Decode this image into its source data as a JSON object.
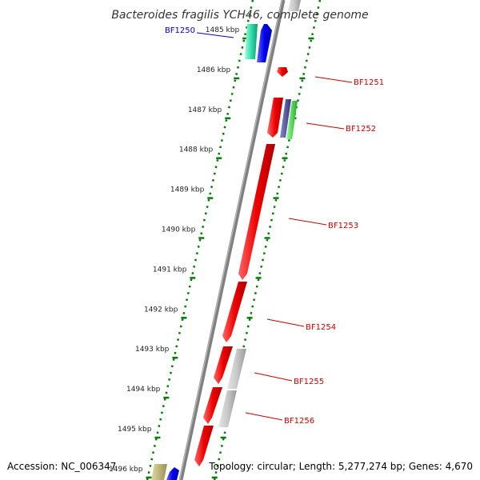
{
  "title": "Bacteroides fragilis YCH46, complete genome",
  "accession_text": "Accession: NC_006347",
  "topology_text": "Topology: circular; Length: 5,277,274 bp; Genes: 4,670",
  "colors": {
    "backbone": "#808080",
    "tick": "#0a7a0a",
    "label_red": "#cc0000",
    "label_blue": "#0000cc"
  },
  "ruler": {
    "labels": [
      "1485 kbp",
      "1486 kbp",
      "1487 kbp",
      "1488 kbp",
      "1489 kbp",
      "1490 kbp",
      "1491 kbp",
      "1492 kbp",
      "1493 kbp",
      "1494 kbp",
      "1495 kbp",
      "1496 kbp"
    ]
  },
  "genes": [
    {
      "name": "BF1250",
      "label_color": "#0000cc",
      "genes_color": [
        "#33ddaa",
        "#0000ee"
      ]
    },
    {
      "name": "BF1251",
      "label_color": "#cc0000"
    },
    {
      "name": "BF1252",
      "label_color": "#cc0000"
    },
    {
      "name": "BF1253",
      "label_color": "#cc0000"
    },
    {
      "name": "BF1254",
      "label_color": "#cc0000"
    },
    {
      "name": "BF1255",
      "label_color": "#cc0000"
    },
    {
      "name": "BF1256",
      "label_color": "#cc0000"
    }
  ]
}
